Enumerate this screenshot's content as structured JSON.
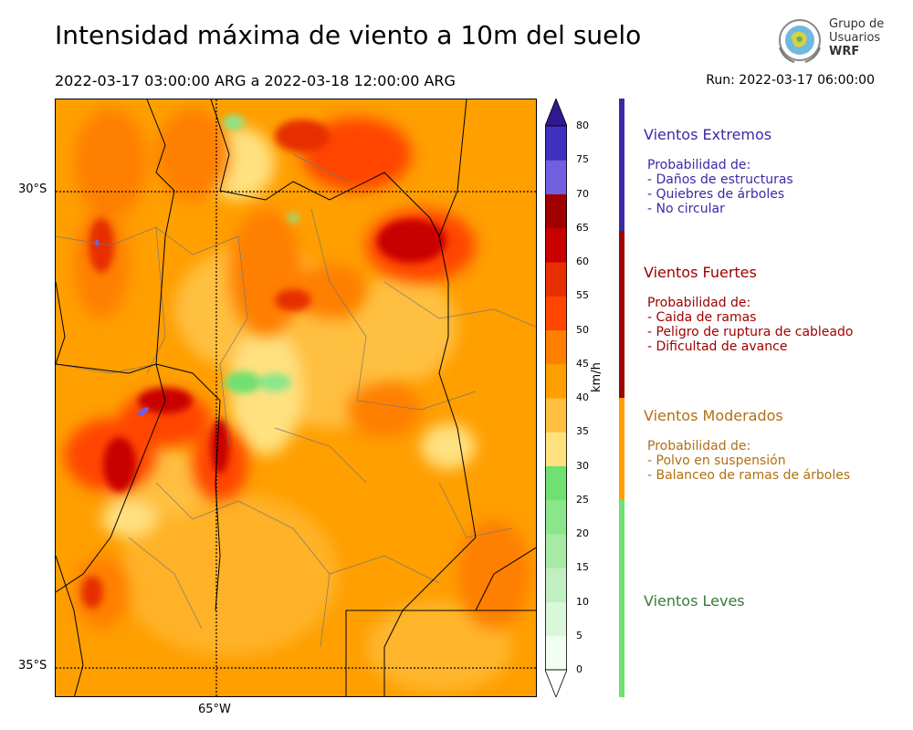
{
  "header": {
    "title": "Intensidad máxima de viento a 10m del suelo",
    "period": "2022-03-17 03:00:00 ARG  a  2022-03-18 12:00:00 ARG",
    "run": "Run: 2022-03-17 06:00:00"
  },
  "logo": {
    "line1": "Grupo de",
    "line2": "Usuarios",
    "line3": "WRF",
    "icon": "globe-seal-icon"
  },
  "map": {
    "lat_labels": [
      "30°S",
      "35°S"
    ],
    "lon_labels": [
      "65°W"
    ]
  },
  "colorbar": {
    "units": "km/h",
    "ticks": [
      "0",
      "5",
      "10",
      "15",
      "20",
      "25",
      "30",
      "35",
      "40",
      "45",
      "50",
      "55",
      "60",
      "65",
      "70",
      "75",
      "80"
    ],
    "colors": [
      "#f0fff0",
      "#d9f7d9",
      "#c0f0c0",
      "#a6eaa6",
      "#8ae68a",
      "#70e070",
      "#ffe180",
      "#ffbf40",
      "#ff9f00",
      "#ff7f00",
      "#ff4500",
      "#e62e00",
      "#c80000",
      "#a00000",
      "#7060e0",
      "#4030c0",
      "#3020a0",
      "#301890"
    ]
  },
  "categories": [
    {
      "title": "Vientos Extremos",
      "color": "#3a2aa8",
      "lines": [
        "Probabilidad de:",
        "- Daños de estructuras",
        "- Quiebres de árboles",
        "- No circular"
      ]
    },
    {
      "title": "Vientos Fuertes",
      "color": "#a00000",
      "lines": [
        "Probabilidad de:",
        "- Caida de ramas",
        "- Peligro de ruptura de cableado",
        "- Dificultad de avance"
      ]
    },
    {
      "title": "Vientos Moderados",
      "color": "#b07010",
      "lines": [
        "Probabilidad de:",
        "- Polvo en suspensión",
        "- Balanceo de ramas de árboles"
      ]
    },
    {
      "title": "Vientos Leves",
      "color": "#3a7a3a",
      "lines": []
    }
  ],
  "sidebar_colors": [
    "#3a2aa8",
    "#a00000",
    "#ff9f00",
    "#70e070"
  ]
}
